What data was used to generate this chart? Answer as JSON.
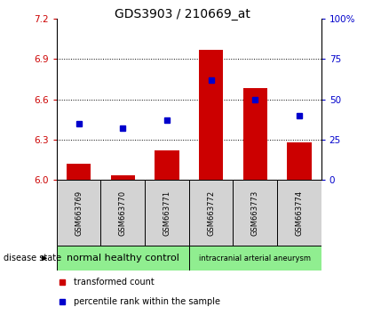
{
  "title": "GDS3903 / 210669_at",
  "samples": [
    "GSM663769",
    "GSM663770",
    "GSM663771",
    "GSM663772",
    "GSM663773",
    "GSM663774"
  ],
  "bar_values": [
    6.12,
    6.03,
    6.22,
    6.97,
    6.68,
    6.28
  ],
  "percentile_values": [
    35,
    32,
    37,
    62,
    50,
    40
  ],
  "ylim_left": [
    6.0,
    7.2
  ],
  "ylim_right": [
    0,
    100
  ],
  "yticks_left": [
    6.0,
    6.3,
    6.6,
    6.9,
    7.2
  ],
  "yticks_right": [
    0,
    25,
    50,
    75,
    100
  ],
  "bar_color": "#cc0000",
  "dot_color": "#0000cc",
  "group1_label": "normal healthy control",
  "group2_label": "intracranial arterial aneurysm",
  "group_color": "#90EE90",
  "disease_state_label": "disease state",
  "legend_bar_label": "transformed count",
  "legend_dot_label": "percentile rank within the sample",
  "tick_label_color_left": "#cc0000",
  "tick_label_color_right": "#0000cc",
  "sample_box_color": "#d3d3d3",
  "title_fontsize": 10,
  "axis_fontsize": 7.5,
  "sample_fontsize": 6,
  "group_fontsize1": 8,
  "group_fontsize2": 6,
  "legend_fontsize": 7,
  "ds_fontsize": 7
}
